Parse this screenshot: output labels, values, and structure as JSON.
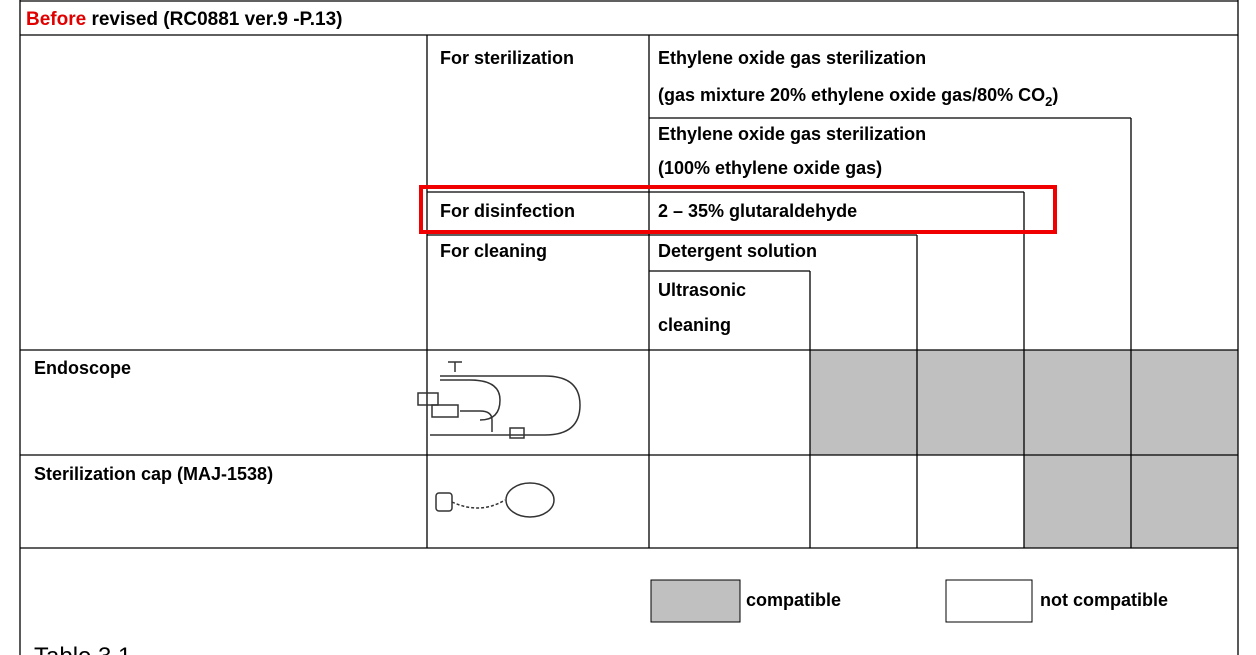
{
  "header": {
    "highlight": "Before",
    "text": "revised (RC0881 ver.9 -P.13)"
  },
  "table": {
    "sterilization": {
      "label": "For sterilization",
      "method_1": [
        "Ethylene oxide gas sterilization",
        "(gas mixture 20% ethylene oxide gas/80% CO",
        "2",
        ")"
      ],
      "method_2": [
        "Ethylene oxide gas sterilization",
        "(100% ethylene oxide gas)"
      ]
    },
    "disinfection": {
      "label": "For disinfection",
      "method": "2 – 35% glutaraldehyde"
    },
    "cleaning": {
      "label": "For cleaning",
      "method_1": "Detergent solution",
      "method_2": [
        "Ultrasonic",
        "cleaning"
      ]
    },
    "rows": [
      {
        "name": "Endoscope",
        "compatible": [
          false,
          true,
          true,
          true,
          true
        ]
      },
      {
        "name": "Sterilization cap (MAJ-1538)",
        "compatible": [
          false,
          false,
          false,
          true,
          true
        ]
      }
    ]
  },
  "legend": {
    "compatible": "compatible",
    "not_compatible": "not compatible"
  },
  "caption": "Table  3.1"
}
